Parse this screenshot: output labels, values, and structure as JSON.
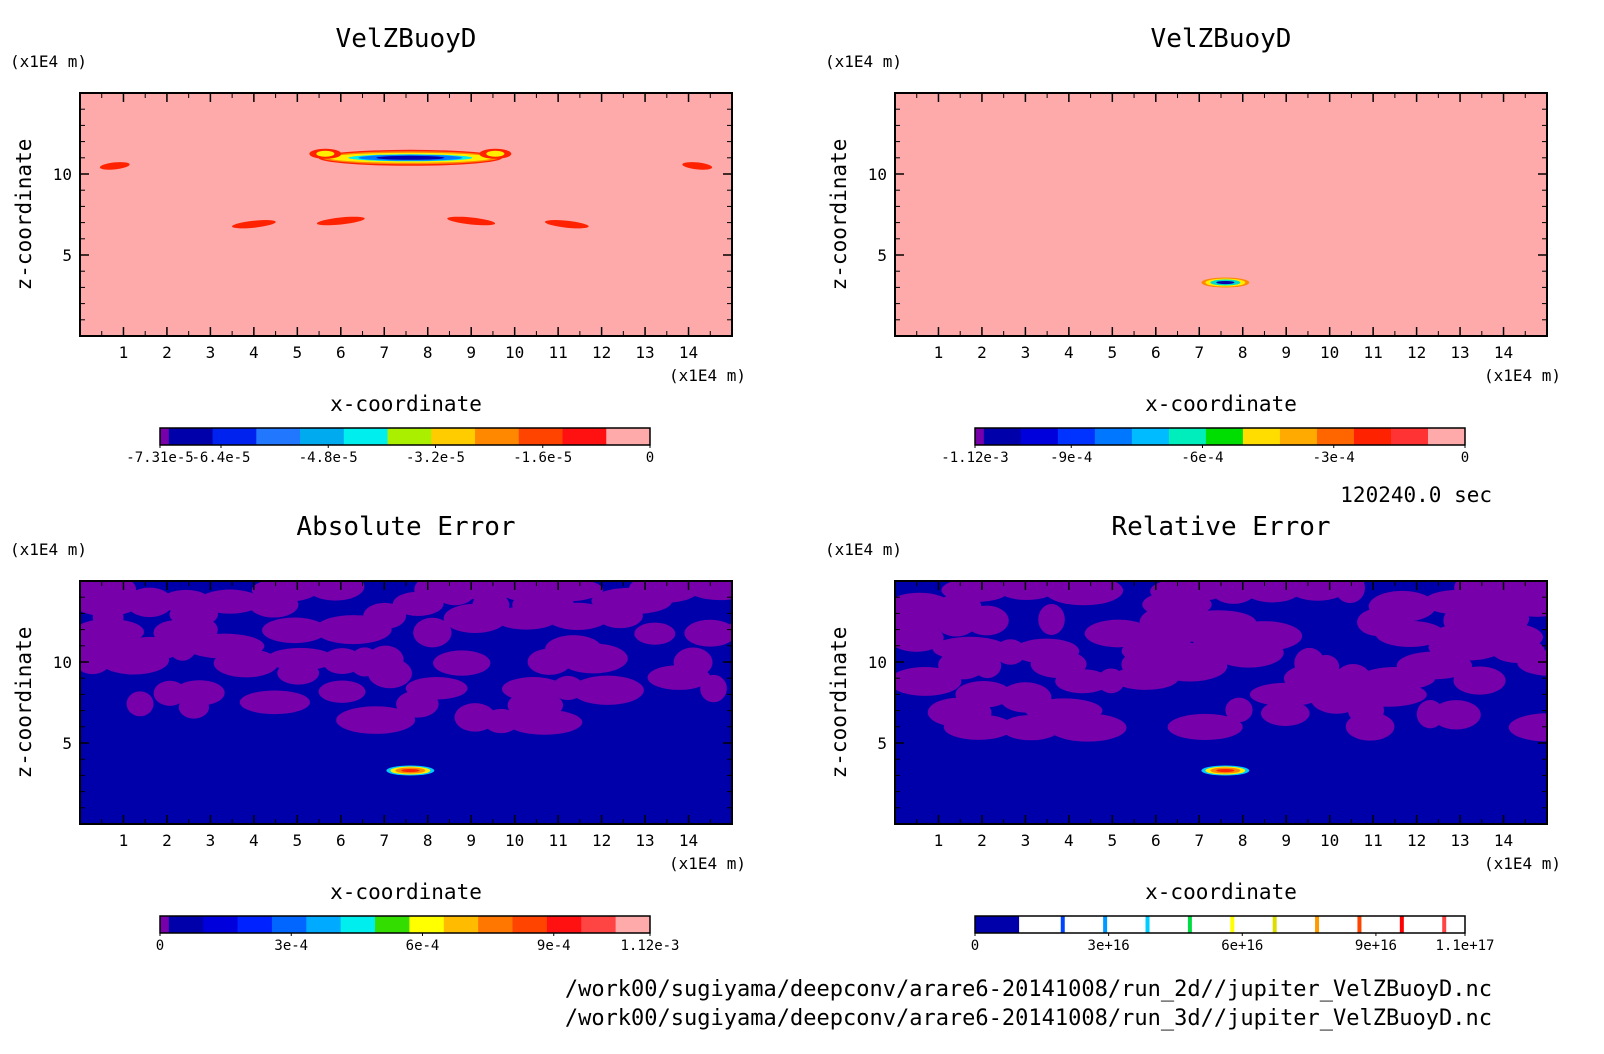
{
  "time_label": "120240.0 sec",
  "footer": {
    "path1": "/work00/sugiyama/deepconv/arare6-20141008/run_2d//jupiter_VelZBuoyD.nc",
    "path2": "/work00/sugiyama/deepconv/arare6-20141008/run_3d//jupiter_VelZBuoyD.nc"
  },
  "chart_data": [
    {
      "type": "heatmap",
      "title": "VelZBuoyD",
      "xlabel": "x-coordinate",
      "ylabel": "z-coordinate",
      "x_unit": "(x1E4 m)",
      "y_unit": "(x1E4 m)",
      "xlim": [
        0,
        15
      ],
      "ylim": [
        0,
        15
      ],
      "xticks": [
        1,
        2,
        3,
        4,
        5,
        6,
        7,
        8,
        9,
        10,
        11,
        12,
        13,
        14
      ],
      "yticks": [
        5,
        10
      ],
      "background_color": "#ffaaaa",
      "features": [
        {
          "x": 7.6,
          "z": 11.0,
          "value": -7.3e-05,
          "note": "band of negative values"
        },
        {
          "x": 6.0,
          "z": 7.1,
          "value": -1.6e-05
        },
        {
          "x": 9.0,
          "z": 7.1,
          "value": -1.6e-05
        },
        {
          "x": 4.0,
          "z": 6.9,
          "value": -1.6e-05
        },
        {
          "x": 11.2,
          "z": 6.9,
          "value": -1.6e-05
        },
        {
          "x": 0.8,
          "z": 10.5,
          "value": -1.6e-05
        },
        {
          "x": 14.2,
          "z": 10.5,
          "value": -1.6e-05
        }
      ],
      "colorbar": {
        "range": [
          -7.31e-05,
          0
        ],
        "colors": [
          "#7700aa",
          "#0000aa",
          "#0022ee",
          "#2277ff",
          "#00aaee",
          "#00eeee",
          "#aaee00",
          "#ffcc00",
          "#ff8800",
          "#ff4400",
          "#ff1111",
          "#ffaaaa"
        ],
        "labels": [
          "-7.31e-5",
          "-6.4e-5",
          "-4.8e-5",
          "-3.2e-5",
          "-1.6e-5",
          "0"
        ]
      }
    },
    {
      "type": "heatmap",
      "title": "VelZBuoyD",
      "xlabel": "x-coordinate",
      "ylabel": "z-coordinate",
      "x_unit": "(x1E4 m)",
      "y_unit": "(x1E4 m)",
      "xlim": [
        0,
        15
      ],
      "ylim": [
        0,
        15
      ],
      "xticks": [
        1,
        2,
        3,
        4,
        5,
        6,
        7,
        8,
        9,
        10,
        11,
        12,
        13,
        14
      ],
      "yticks": [
        5,
        10
      ],
      "background_color": "#ffaaaa",
      "features": [
        {
          "x": 7.6,
          "z": 3.3,
          "value": -0.00112,
          "note": "compact negative blob"
        }
      ],
      "colorbar": {
        "range": [
          -0.00112,
          0
        ],
        "colors": [
          "#7700aa",
          "#0000aa",
          "#0000dd",
          "#0033ff",
          "#0077ff",
          "#00bbff",
          "#00eebb",
          "#00dd00",
          "#ffdd00",
          "#ffaa00",
          "#ff6600",
          "#ff2200",
          "#ff3333",
          "#ffaaaa"
        ],
        "labels": [
          "-1.12e-3",
          "-9e-4",
          "-6e-4",
          "-3e-4",
          "0"
        ]
      }
    },
    {
      "type": "heatmap",
      "title": "Absolute Error",
      "xlabel": "x-coordinate",
      "ylabel": "z-coordinate",
      "x_unit": "(x1E4 m)",
      "y_unit": "(x1E4 m)",
      "xlim": [
        0,
        15
      ],
      "ylim": [
        0,
        15
      ],
      "xticks": [
        1,
        2,
        3,
        4,
        5,
        6,
        7,
        8,
        9,
        10,
        11,
        12,
        13,
        14
      ],
      "yticks": [
        5,
        10
      ],
      "background_color": "#0000aa",
      "noise_color": "#7700aa",
      "noise_zmin": 6.0,
      "features": [
        {
          "x": 7.6,
          "z": 3.3,
          "value": 0.00112,
          "note": "compact positive blob"
        }
      ],
      "colorbar": {
        "range": [
          0,
          0.00112
        ],
        "colors": [
          "#7700aa",
          "#0000aa",
          "#0000dd",
          "#0022ff",
          "#0066ff",
          "#00aaff",
          "#00eeee",
          "#33dd00",
          "#ffff00",
          "#ffbb00",
          "#ff7700",
          "#ff4400",
          "#ff1111",
          "#ff4444",
          "#ffaaaa"
        ],
        "labels": [
          "0",
          "3e-4",
          "6e-4",
          "9e-4",
          "1.12e-3"
        ]
      }
    },
    {
      "type": "heatmap",
      "title": "Relative Error",
      "xlabel": "x-coordinate",
      "ylabel": "z-coordinate",
      "x_unit": "(x1E4 m)",
      "y_unit": "(x1E4 m)",
      "xlim": [
        0,
        15
      ],
      "ylim": [
        0,
        15
      ],
      "xticks": [
        1,
        2,
        3,
        4,
        5,
        6,
        7,
        8,
        9,
        10,
        11,
        12,
        13,
        14
      ],
      "yticks": [
        5,
        10
      ],
      "background_color": "#0000aa",
      "noise_color": "#7700aa",
      "noise_zmin": 5.5,
      "features": [
        {
          "x": 7.6,
          "z": 3.3,
          "value": 1.1e+17,
          "note": "compact positive blob"
        }
      ],
      "colorbar": {
        "range": [
          0,
          1.1e+17
        ],
        "colors": [
          "#0000aa",
          "#ffffff"
        ],
        "line_colors": [
          "#0044ff",
          "#0099ff",
          "#00ccff",
          "#00dd44",
          "#ffff00",
          "#dddd00",
          "#ff9900",
          "#ff4400",
          "#ff0000",
          "#ff4444"
        ],
        "labels": [
          "0",
          "3e+16",
          "6e+16",
          "9e+16",
          "1.1e+17"
        ]
      }
    }
  ]
}
